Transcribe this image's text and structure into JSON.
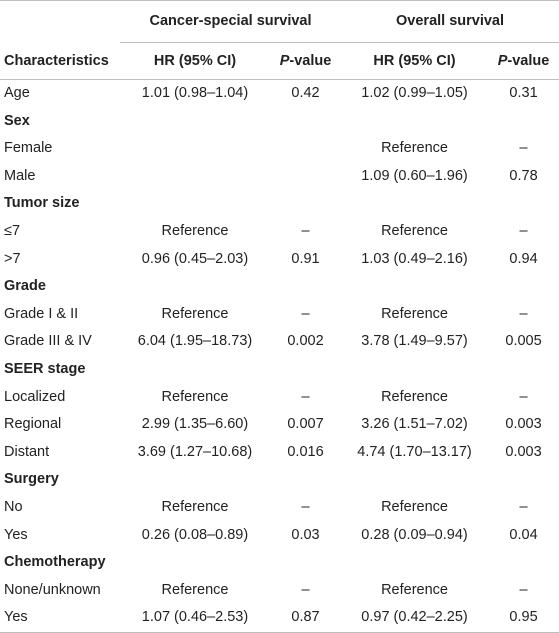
{
  "header": {
    "characteristics": "Characteristics",
    "group1": "Cancer-special survival",
    "group2": "Overall survival",
    "hr": "HR (95% CI)",
    "p_italic": "P",
    "p_rest": "-value"
  },
  "rows": [
    {
      "label": "Age",
      "section": false,
      "css_hr": "1.01 (0.98–1.04)",
      "css_p": "0.42",
      "os_hr": "1.02 (0.99–1.05)",
      "os_p": "0.31"
    },
    {
      "label": "Sex",
      "section": true
    },
    {
      "label": "Female",
      "section": false,
      "css_hr": "",
      "css_p": "",
      "os_hr": "Reference",
      "os_p": "–"
    },
    {
      "label": "Male",
      "section": false,
      "css_hr": "",
      "css_p": "",
      "os_hr": "1.09 (0.60–1.96)",
      "os_p": "0.78"
    },
    {
      "label": "Tumor size",
      "section": true
    },
    {
      "label": "≤7",
      "section": false,
      "css_hr": "Reference",
      "css_p": "–",
      "os_hr": "Reference",
      "os_p": "–"
    },
    {
      "label": ">7",
      "section": false,
      "css_hr": "0.96 (0.45–2.03)",
      "css_p": "0.91",
      "os_hr": "1.03 (0.49–2.16)",
      "os_p": "0.94"
    },
    {
      "label": "Grade",
      "section": true
    },
    {
      "label": "Grade I & II",
      "section": false,
      "css_hr": "Reference",
      "css_p": "–",
      "os_hr": "Reference",
      "os_p": "–"
    },
    {
      "label": "Grade III & IV",
      "section": false,
      "css_hr": "6.04 (1.95–18.73)",
      "css_p": "0.002",
      "os_hr": "3.78 (1.49–9.57)",
      "os_p": "0.005"
    },
    {
      "label": "SEER stage",
      "section": true
    },
    {
      "label": "Localized",
      "section": false,
      "css_hr": "Reference",
      "css_p": "–",
      "os_hr": "Reference",
      "os_p": "–"
    },
    {
      "label": "Regional",
      "section": false,
      "css_hr": "2.99 (1.35–6.60)",
      "css_p": "0.007",
      "os_hr": "3.26 (1.51–7.02)",
      "os_p": "0.003"
    },
    {
      "label": "Distant",
      "section": false,
      "css_hr": "3.69 (1.27–10.68)",
      "css_p": "0.016",
      "os_hr": "4.74 (1.70–13.17)",
      "os_p": "0.003"
    },
    {
      "label": "Surgery",
      "section": true
    },
    {
      "label": "No",
      "section": false,
      "css_hr": "Reference",
      "css_p": "–",
      "os_hr": "Reference",
      "os_p": "–"
    },
    {
      "label": "Yes",
      "section": false,
      "css_hr": "0.26 (0.08–0.89)",
      "css_p": "0.03",
      "os_hr": "0.28 (0.09–0.94)",
      "os_p": "0.04"
    },
    {
      "label": "Chemotherapy",
      "section": true
    },
    {
      "label": "None/unknown",
      "section": false,
      "css_hr": "Reference",
      "css_p": "–",
      "os_hr": "Reference",
      "os_p": "–"
    },
    {
      "label": "Yes",
      "section": false,
      "css_hr": "1.07 (0.46–2.53)",
      "css_p": "0.87",
      "os_hr": "0.97 (0.42–2.25)",
      "os_p": "0.95"
    }
  ]
}
